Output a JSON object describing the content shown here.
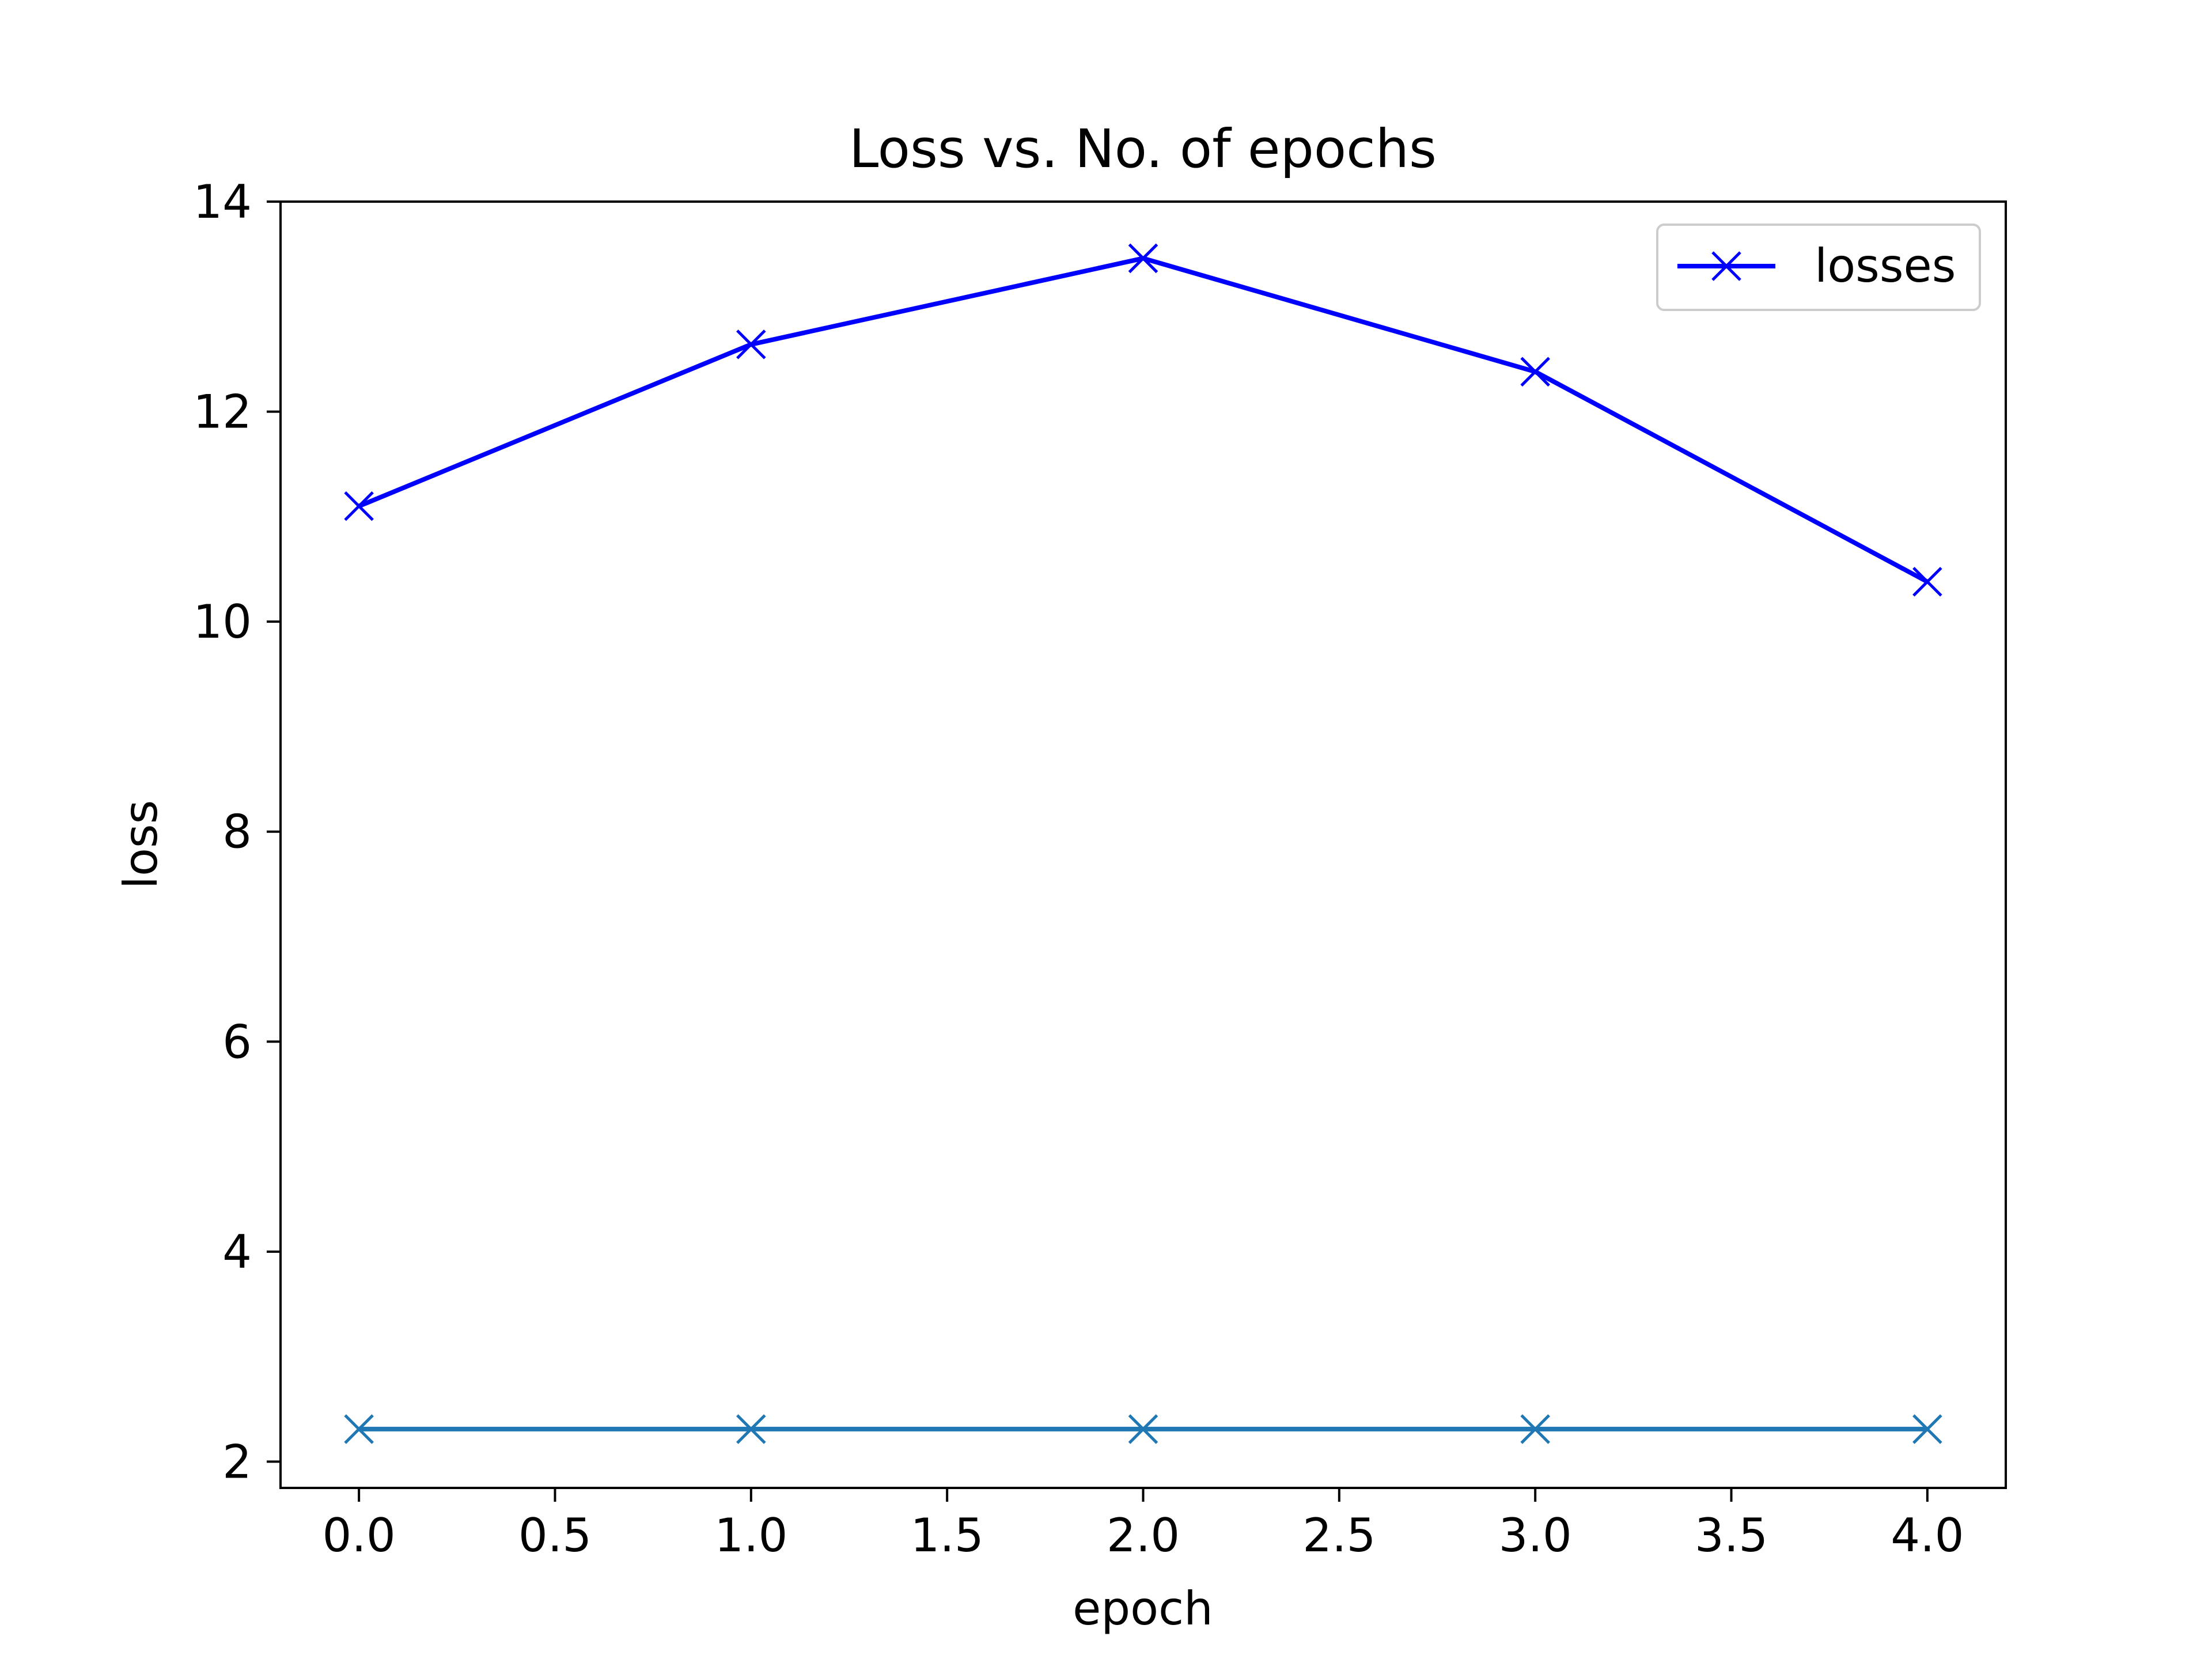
{
  "chart_data": {
    "type": "line",
    "title": "Loss vs. No. of epochs",
    "xlabel": "epoch",
    "ylabel": "loss",
    "xlim": [
      -0.2,
      4.2
    ],
    "ylim": [
      1.75,
      14.0
    ],
    "x_ticks": [
      "0.0",
      "0.5",
      "1.0",
      "1.5",
      "2.0",
      "2.5",
      "3.0",
      "3.5",
      "4.0"
    ],
    "y_ticks": [
      "2",
      "4",
      "6",
      "8",
      "10",
      "12",
      "14"
    ],
    "grid": false,
    "legend": {
      "placement": "top-right",
      "entries": [
        "losses"
      ]
    },
    "series": [
      {
        "name": "losses",
        "color": "#0000ff",
        "marker": "x",
        "x": [
          0,
          1,
          2,
          3,
          4
        ],
        "y": [
          11.1,
          12.64,
          13.46,
          12.38,
          10.38
        ]
      },
      {
        "color": "#1f77b4",
        "marker": "x",
        "x": [
          0,
          1,
          2,
          3,
          4
        ],
        "y": [
          2.31,
          2.31,
          2.31,
          2.31,
          2.31
        ]
      }
    ]
  }
}
